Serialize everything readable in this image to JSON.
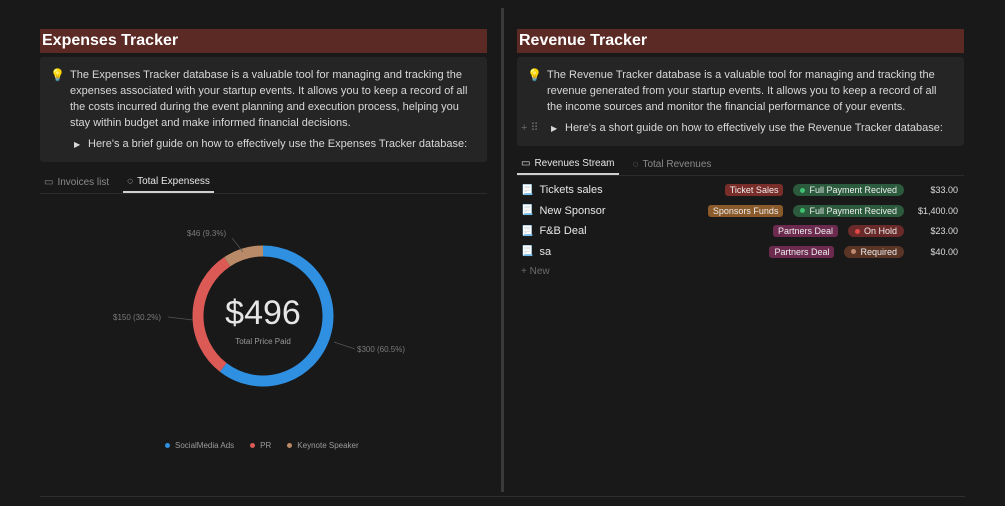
{
  "expenses": {
    "title": "Expenses Tracker",
    "description": "The Expenses Tracker database is a valuable tool for managing and tracking the expenses associated with your startup events. It allows you to keep a record of all the costs incurred during the event planning and execution process, helping you stay within budget and make informed financial decisions.",
    "toggle": "Here's a brief guide on how to effectively use the Expenses Tracker database:",
    "tabs": [
      {
        "label": "Invoices list"
      },
      {
        "label": "Total Expensess"
      }
    ],
    "chart_data": {
      "type": "pie",
      "center_value": "$496",
      "center_label": "Total Price Paid",
      "slices": [
        {
          "name": "SocialMedia Ads",
          "value": 300,
          "label": "$300 (60.5%)",
          "color": "#2f8fe0"
        },
        {
          "name": "PR",
          "value": 150,
          "label": "$150 (30.2%)",
          "color": "#dc5a55"
        },
        {
          "name": "Keynote Speaker",
          "value": 46,
          "label": "$46 (9.3%)",
          "color": "#b98a67"
        }
      ]
    }
  },
  "revenue": {
    "title": "Revenue Tracker",
    "description": "The Revenue Tracker database is a valuable tool for managing and tracking the revenue generated from your startup events. It allows you to keep a record of all the income sources and monitor the financial performance of your events.",
    "toggle": "Here's a short guide on how to effectively use the Revenue Tracker database:",
    "tabs": [
      {
        "label": "Revenues Stream"
      },
      {
        "label": "Total Revenues"
      }
    ],
    "rows": [
      {
        "name": "Tickets sales",
        "tag": "Ticket Sales",
        "tagColor": "#7a2e2a",
        "status": "Full Payment Recived",
        "statusColor": "#2b5a3c",
        "dotColor": "#3fbf6f",
        "amount": "$33.00"
      },
      {
        "name": "New Sponsor",
        "tag": "Sponsors Funds",
        "tagColor": "#8a5a2a",
        "status": "Full Payment Recived",
        "statusColor": "#2b5a3c",
        "dotColor": "#3fbf6f",
        "amount": "$1,400.00"
      },
      {
        "name": "F&B Deal",
        "tag": "Partners Deal",
        "tagColor": "#6b2a4e",
        "status": "On Hold",
        "statusColor": "#6a2a2a",
        "dotColor": "#e04848",
        "amount": "$23.00"
      },
      {
        "name": "sa",
        "tag": "Partners Deal",
        "tagColor": "#6b2a4e",
        "status": "Required",
        "statusColor": "#5a3526",
        "dotColor": "#c08a70",
        "amount": "$40.00"
      }
    ],
    "new_label": "New"
  }
}
